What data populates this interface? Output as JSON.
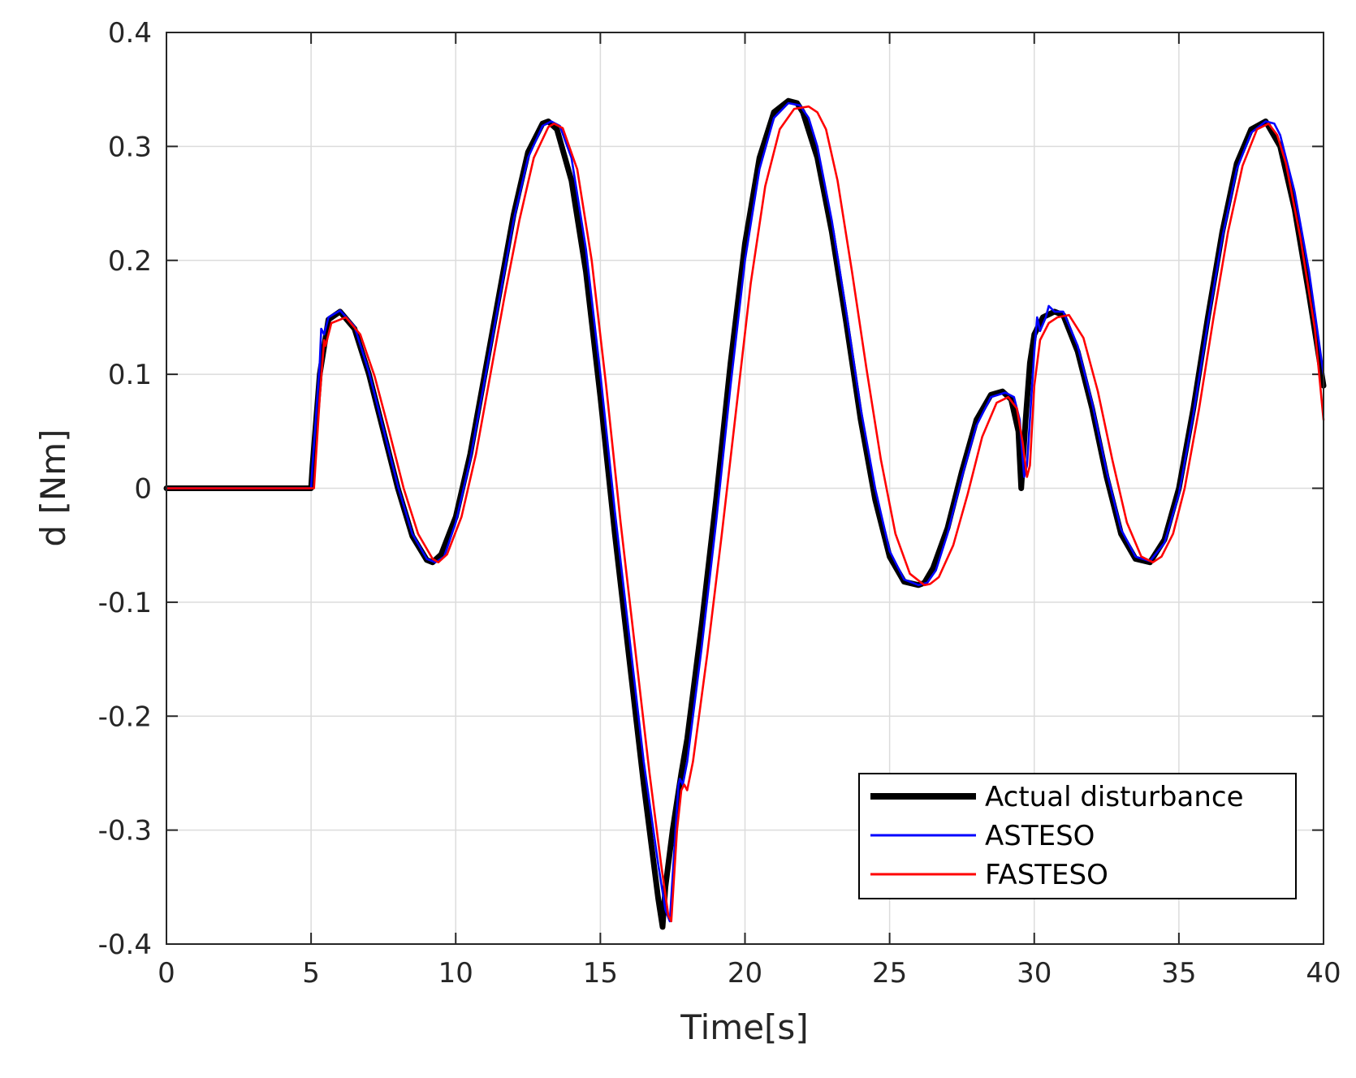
{
  "chart_data": {
    "type": "line",
    "title": "",
    "xlabel": "Time[s]",
    "ylabel": "d [Nm]",
    "xlim": [
      0,
      40
    ],
    "ylim": [
      -0.4,
      0.4
    ],
    "xticks": [
      0,
      5,
      10,
      15,
      20,
      25,
      30,
      35,
      40
    ],
    "yticks": [
      -0.4,
      -0.3,
      -0.2,
      -0.1,
      0,
      0.1,
      0.2,
      0.3,
      0.4
    ],
    "xtick_labels": [
      "0",
      "5",
      "10",
      "15",
      "20",
      "25",
      "30",
      "35",
      "40"
    ],
    "ytick_labels": [
      "-0.4",
      "-0.3",
      "-0.2",
      "-0.1",
      "0",
      "0.1",
      "0.2",
      "0.3",
      "0.4"
    ],
    "grid": true,
    "legend_position": "bottom-right",
    "series": [
      {
        "name": "Actual disturbance",
        "color": "#000000",
        "x": [
          0,
          5,
          5.05,
          5.3,
          5.6,
          6.0,
          6.5,
          7.0,
          7.5,
          8.0,
          8.5,
          9.0,
          9.2,
          9.5,
          10.0,
          10.5,
          11.0,
          11.5,
          12.0,
          12.5,
          13.0,
          13.2,
          13.5,
          14.0,
          14.5,
          15.0,
          15.5,
          16.0,
          16.5,
          17.0,
          17.15,
          17.25,
          17.5,
          17.8,
          18.0,
          18.5,
          19.0,
          19.5,
          20.0,
          20.5,
          21.0,
          21.5,
          21.8,
          22.0,
          22.5,
          23.0,
          23.5,
          24.0,
          24.5,
          25.0,
          25.5,
          26.0,
          26.2,
          26.5,
          27.0,
          27.5,
          28.0,
          28.5,
          28.9,
          29.2,
          29.45,
          29.55,
          29.7,
          29.85,
          30.0,
          30.3,
          30.7,
          31.0,
          31.5,
          32.0,
          32.5,
          33.0,
          33.5,
          34.0,
          34.5,
          35.0,
          35.5,
          36.0,
          36.5,
          37.0,
          37.5,
          38.0,
          38.5,
          39.0,
          39.5,
          40.0
        ],
        "y": [
          0,
          0,
          0.02,
          0.1,
          0.148,
          0.155,
          0.14,
          0.1,
          0.05,
          0.0,
          -0.042,
          -0.063,
          -0.065,
          -0.058,
          -0.025,
          0.03,
          0.1,
          0.17,
          0.24,
          0.295,
          0.32,
          0.322,
          0.315,
          0.27,
          0.19,
          0.08,
          -0.04,
          -0.15,
          -0.26,
          -0.36,
          -0.385,
          -0.35,
          -0.3,
          -0.25,
          -0.22,
          -0.12,
          -0.01,
          0.11,
          0.215,
          0.29,
          0.33,
          0.34,
          0.338,
          0.33,
          0.29,
          0.225,
          0.145,
          0.06,
          -0.01,
          -0.06,
          -0.082,
          -0.085,
          -0.083,
          -0.07,
          -0.035,
          0.015,
          0.06,
          0.082,
          0.085,
          0.078,
          0.05,
          0.0,
          0.06,
          0.11,
          0.135,
          0.15,
          0.155,
          0.152,
          0.12,
          0.07,
          0.01,
          -0.04,
          -0.062,
          -0.065,
          -0.045,
          0.0,
          0.07,
          0.15,
          0.225,
          0.285,
          0.315,
          0.322,
          0.3,
          0.245,
          0.17,
          0.09
        ]
      },
      {
        "name": "ASTESO",
        "color": "#0000ff",
        "x": [
          0,
          5,
          5.05,
          5.3,
          5.35,
          5.45,
          5.6,
          6.0,
          6.5,
          7.0,
          7.5,
          8.0,
          8.5,
          9.0,
          9.3,
          9.6,
          10.0,
          10.5,
          11.0,
          11.5,
          12.0,
          12.5,
          13.0,
          13.3,
          13.6,
          14.0,
          14.5,
          15.0,
          15.5,
          16.0,
          16.5,
          17.0,
          17.25,
          17.4,
          17.6,
          17.7,
          17.75,
          17.85,
          18.0,
          18.5,
          19.0,
          19.5,
          20.0,
          20.5,
          21.0,
          21.5,
          21.9,
          22.2,
          22.5,
          23.0,
          23.5,
          24.0,
          24.5,
          25.0,
          25.5,
          26.0,
          26.3,
          26.6,
          27.0,
          27.5,
          28.0,
          28.5,
          29.0,
          29.3,
          29.5,
          29.65,
          29.75,
          29.9,
          30.0,
          30.1,
          30.2,
          30.4,
          30.5,
          30.7,
          31.0,
          31.5,
          32.0,
          32.5,
          33.0,
          33.5,
          34.0,
          34.5,
          35.0,
          35.5,
          36.0,
          36.5,
          37.0,
          37.5,
          38.0,
          38.3,
          38.5,
          39.0,
          39.5,
          40.0
        ],
        "y": [
          0,
          0,
          0.02,
          0.11,
          0.14,
          0.135,
          0.15,
          0.156,
          0.142,
          0.102,
          0.052,
          0.002,
          -0.04,
          -0.062,
          -0.065,
          -0.06,
          -0.03,
          0.025,
          0.095,
          0.165,
          0.235,
          0.29,
          0.318,
          0.322,
          0.318,
          0.29,
          0.21,
          0.1,
          -0.02,
          -0.13,
          -0.24,
          -0.33,
          -0.37,
          -0.38,
          -0.3,
          -0.26,
          -0.255,
          -0.26,
          -0.24,
          -0.14,
          -0.03,
          0.09,
          0.2,
          0.28,
          0.325,
          0.338,
          0.336,
          0.325,
          0.3,
          0.235,
          0.155,
          0.07,
          0.0,
          -0.055,
          -0.08,
          -0.085,
          -0.083,
          -0.072,
          -0.04,
          0.01,
          0.055,
          0.08,
          0.084,
          0.08,
          0.06,
          0.01,
          0.02,
          0.08,
          0.12,
          0.15,
          0.138,
          0.15,
          0.16,
          0.155,
          0.155,
          0.125,
          0.075,
          0.015,
          -0.036,
          -0.06,
          -0.064,
          -0.048,
          -0.005,
          0.065,
          0.145,
          0.22,
          0.28,
          0.312,
          0.322,
          0.32,
          0.31,
          0.26,
          0.19,
          0.1
        ]
      },
      {
        "name": "FASTESO",
        "color": "#ff0000",
        "x": [
          0,
          5,
          5.1,
          5.3,
          5.45,
          5.5,
          5.7,
          6.2,
          6.7,
          7.2,
          7.7,
          8.2,
          8.7,
          9.2,
          9.4,
          9.7,
          10.2,
          10.7,
          11.2,
          11.7,
          12.2,
          12.7,
          13.2,
          13.4,
          13.7,
          14.2,
          14.7,
          15.2,
          15.7,
          16.2,
          16.7,
          17.1,
          17.35,
          17.45,
          17.65,
          17.8,
          17.9,
          18.0,
          18.2,
          18.7,
          19.2,
          19.7,
          20.2,
          20.7,
          21.2,
          21.7,
          22.2,
          22.5,
          22.8,
          23.2,
          23.7,
          24.2,
          24.7,
          25.2,
          25.7,
          26.2,
          26.4,
          26.7,
          27.2,
          27.7,
          28.2,
          28.7,
          29.1,
          29.4,
          29.6,
          29.75,
          29.85,
          30.0,
          30.2,
          30.5,
          30.8,
          31.2,
          31.7,
          32.2,
          32.7,
          33.2,
          33.7,
          34.1,
          34.4,
          34.8,
          35.2,
          35.7,
          36.2,
          36.7,
          37.2,
          37.7,
          38.1,
          38.4,
          38.7,
          39.2,
          39.7,
          40.0
        ],
        "y": [
          0,
          0,
          0.0,
          0.08,
          0.13,
          0.125,
          0.145,
          0.15,
          0.135,
          0.098,
          0.05,
          0.0,
          -0.04,
          -0.062,
          -0.065,
          -0.058,
          -0.025,
          0.03,
          0.1,
          0.17,
          0.235,
          0.29,
          0.317,
          0.32,
          0.316,
          0.28,
          0.2,
          0.09,
          -0.03,
          -0.14,
          -0.25,
          -0.33,
          -0.375,
          -0.38,
          -0.3,
          -0.265,
          -0.26,
          -0.265,
          -0.24,
          -0.145,
          -0.04,
          0.07,
          0.18,
          0.265,
          0.315,
          0.333,
          0.335,
          0.33,
          0.315,
          0.27,
          0.19,
          0.105,
          0.025,
          -0.04,
          -0.075,
          -0.085,
          -0.084,
          -0.078,
          -0.05,
          -0.005,
          0.045,
          0.075,
          0.08,
          0.07,
          0.04,
          0.01,
          0.02,
          0.09,
          0.13,
          0.145,
          0.15,
          0.152,
          0.132,
          0.085,
          0.025,
          -0.03,
          -0.06,
          -0.065,
          -0.06,
          -0.04,
          0.0,
          0.07,
          0.15,
          0.225,
          0.283,
          0.315,
          0.32,
          0.31,
          0.285,
          0.22,
          0.14,
          0.06
        ]
      }
    ]
  }
}
